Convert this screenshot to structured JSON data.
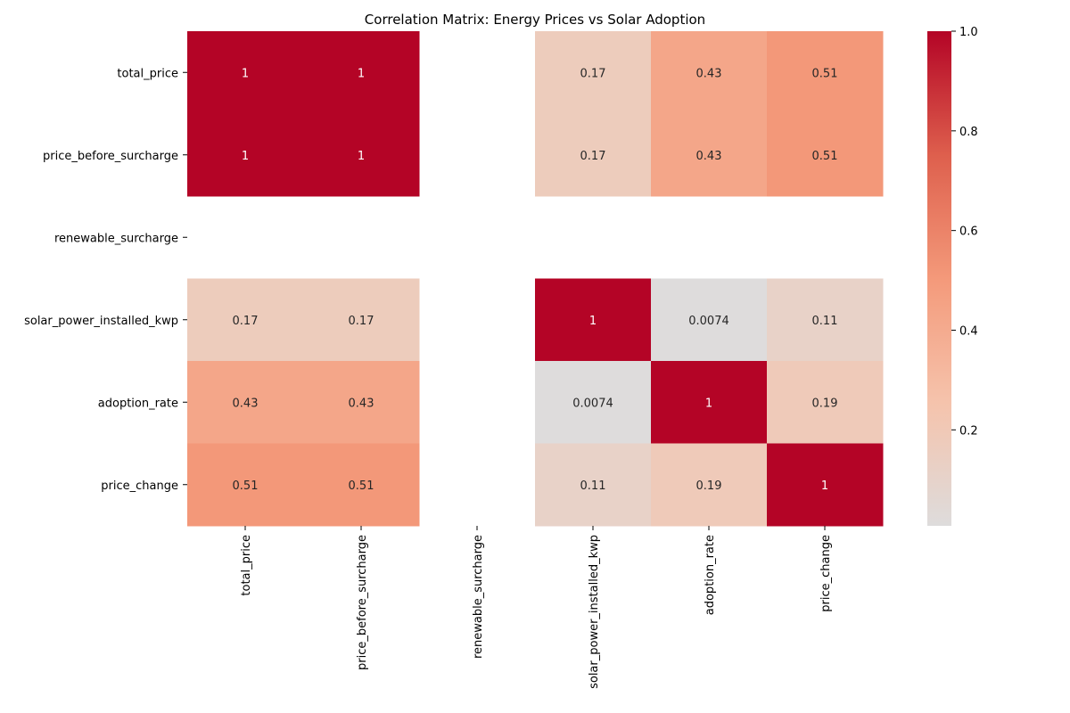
{
  "chart_data": {
    "type": "heatmap",
    "title": "Correlation Matrix: Energy Prices vs Solar Adoption",
    "xlabel": "",
    "ylabel": "",
    "rows": [
      "total_price",
      "price_before_surcharge",
      "renewable_surcharge",
      "solar_power_installed_kwp",
      "adoption_rate",
      "price_change"
    ],
    "cols": [
      "total_price",
      "price_before_surcharge",
      "renewable_surcharge",
      "solar_power_installed_kwp",
      "adoption_rate",
      "price_change"
    ],
    "values": [
      [
        1,
        1,
        null,
        0.17,
        0.43,
        0.51
      ],
      [
        1,
        1,
        null,
        0.17,
        0.43,
        0.51
      ],
      [
        null,
        null,
        null,
        null,
        null,
        null
      ],
      [
        0.17,
        0.17,
        null,
        1,
        0.0074,
        0.11
      ],
      [
        0.43,
        0.43,
        null,
        0.0074,
        1,
        0.19
      ],
      [
        0.51,
        0.51,
        null,
        0.11,
        0.19,
        1
      ]
    ],
    "labels": [
      [
        "1",
        "1",
        "",
        "0.17",
        "0.43",
        "0.51"
      ],
      [
        "1",
        "1",
        "",
        "0.17",
        "0.43",
        "0.51"
      ],
      [
        "",
        "",
        "",
        "",
        "",
        ""
      ],
      [
        "0.17",
        "0.17",
        "",
        "1",
        "0.0074",
        "0.11"
      ],
      [
        "0.43",
        "0.43",
        "",
        "0.0074",
        "1",
        "0.19"
      ],
      [
        "0.51",
        "0.51",
        "",
        "0.11",
        "0.19",
        "1"
      ]
    ],
    "colormap": "coolwarm",
    "color_range": [
      0.0074,
      1.0
    ],
    "colorbar": {
      "ticks": [
        0.2,
        0.4,
        0.6,
        0.8,
        1.0
      ],
      "tick_labels": [
        "0.2",
        "0.4",
        "0.6",
        "0.8",
        "1.0"
      ],
      "placement": "right"
    }
  }
}
